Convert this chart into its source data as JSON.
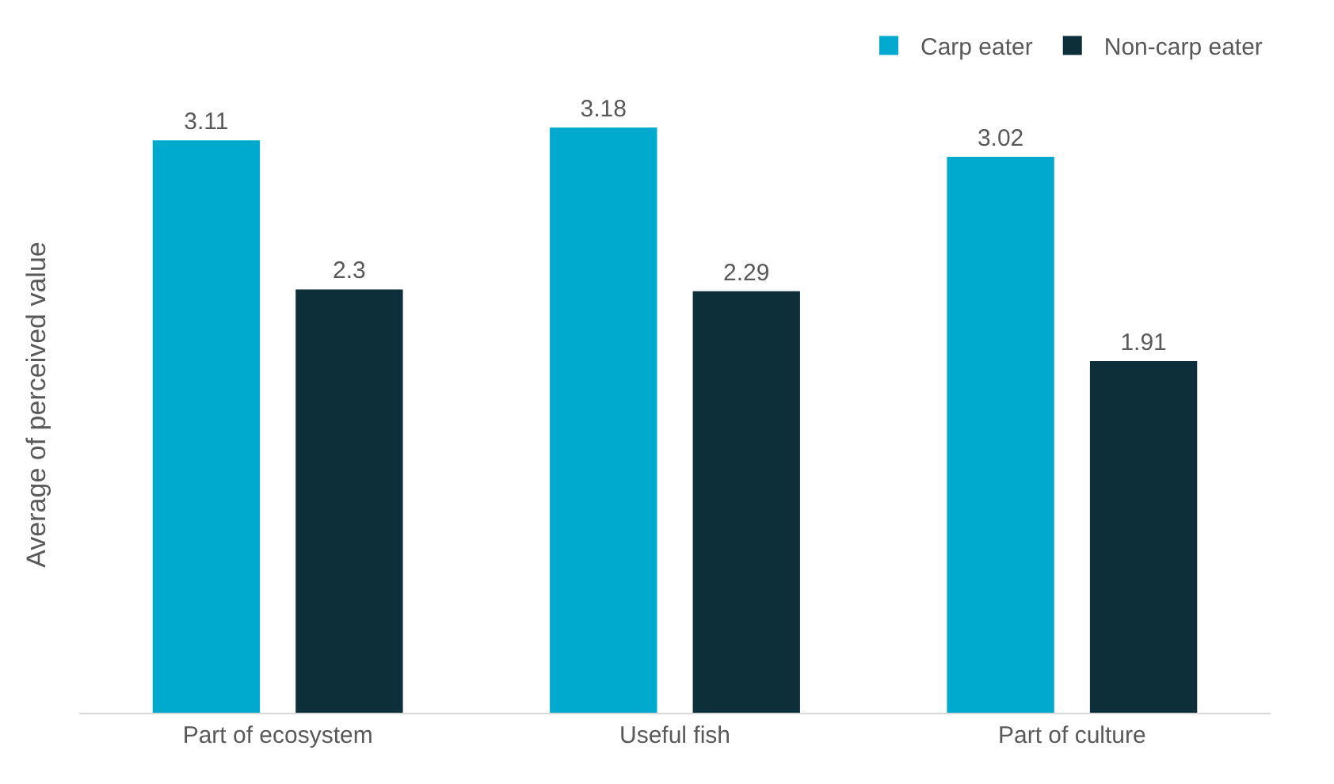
{
  "chart_data": {
    "type": "bar",
    "ylabel": "Average of perceived value",
    "categories": [
      "Part of ecosystem",
      "Useful fish",
      "Part of culture"
    ],
    "series": [
      {
        "name": "Carp eater",
        "color": "#00a9ce",
        "values": [
          3.11,
          3.18,
          3.02
        ]
      },
      {
        "name": "Non-carp eater",
        "color": "#0c2f3a",
        "values": [
          2.3,
          2.29,
          1.91
        ]
      }
    ],
    "data_labels": true,
    "legend": "top right",
    "tick_labels": "x"
  }
}
